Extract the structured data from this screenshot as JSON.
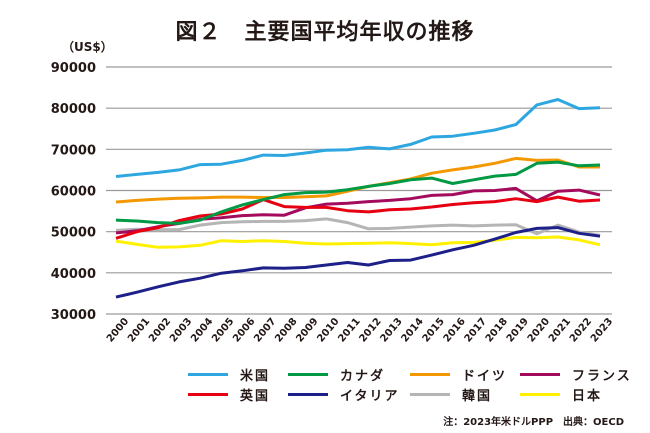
{
  "chart_data": {
    "type": "line",
    "title": "図２　主要国平均年収の推移",
    "ylabel": "（US$）",
    "xlabel": "",
    "ylim": [
      30000,
      90000
    ],
    "yticks": [
      30000,
      40000,
      50000,
      60000,
      70000,
      80000,
      90000
    ],
    "ytick_labels": [
      "30000",
      "40000",
      "50000",
      "60000",
      "70000",
      "80000",
      "90000"
    ],
    "grid": true,
    "legend_position": "bottom",
    "x": [
      "2000",
      "2001",
      "2002",
      "2003",
      "2004",
      "2005",
      "2006",
      "2007",
      "2008",
      "2009",
      "2010",
      "2011",
      "2012",
      "2013",
      "2014",
      "2015",
      "2016",
      "2017",
      "2018",
      "2019",
      "2020",
      "2021",
      "2022",
      "2023"
    ],
    "series": [
      {
        "name": "米国",
        "color": "#2ea7e0",
        "values": [
          63400,
          63900,
          64400,
          65000,
          66300,
          66400,
          67300,
          68600,
          68500,
          69100,
          69800,
          69900,
          70500,
          70100,
          71200,
          73000,
          73200,
          73900,
          74700,
          76000,
          80800,
          82100,
          79900,
          80100
        ]
      },
      {
        "name": "カナダ",
        "color": "#009944",
        "values": [
          52800,
          52600,
          52200,
          52000,
          52800,
          54800,
          56500,
          57800,
          59000,
          59500,
          59600,
          60200,
          61000,
          61700,
          62600,
          63000,
          61700,
          62600,
          63500,
          63900,
          66600,
          66900,
          66000,
          66200
        ]
      },
      {
        "name": "ドイツ",
        "color": "#f39800",
        "values": [
          57200,
          57600,
          57900,
          58100,
          58200,
          58400,
          58400,
          58300,
          58300,
          58500,
          58700,
          59800,
          61000,
          61900,
          62800,
          64200,
          65000,
          65700,
          66600,
          67800,
          67300,
          67400,
          65700,
          65700
        ]
      },
      {
        "name": "フランス",
        "color": "#a40b5d",
        "values": [
          49700,
          50200,
          51200,
          52000,
          53000,
          53400,
          53900,
          54100,
          54000,
          55800,
          56700,
          56900,
          57300,
          57600,
          58000,
          58800,
          59000,
          59900,
          60000,
          60500,
          57500,
          59800,
          60100,
          58900
        ]
      },
      {
        "name": "英国",
        "color": "#e60012",
        "values": [
          48400,
          50000,
          51000,
          52700,
          53800,
          54300,
          55500,
          57800,
          56100,
          55900,
          55900,
          55100,
          54800,
          55300,
          55500,
          56000,
          56600,
          57000,
          57300,
          58000,
          57300,
          58400,
          57400,
          57700
        ]
      },
      {
        "name": "イタリア",
        "color": "#1d2088",
        "values": [
          34100,
          35300,
          36600,
          37800,
          38700,
          39900,
          40500,
          41200,
          41100,
          41300,
          41900,
          42500,
          41900,
          43000,
          43100,
          44300,
          45600,
          46700,
          48200,
          49800,
          50800,
          51000,
          49600,
          48900
        ]
      },
      {
        "name": "韓国",
        "color": "#b5b5b6",
        "values": [
          50300,
          50600,
          50500,
          50500,
          51600,
          52200,
          52400,
          52500,
          52500,
          52700,
          53100,
          52200,
          50700,
          50800,
          51100,
          51400,
          51600,
          51400,
          51600,
          51700,
          49500,
          51600,
          49900,
          49100
        ]
      },
      {
        "name": "日本",
        "color": "#fff100",
        "values": [
          47700,
          46900,
          46200,
          46300,
          46700,
          47800,
          47600,
          47800,
          47600,
          47200,
          47000,
          47100,
          47200,
          47300,
          47100,
          46800,
          47300,
          47400,
          47900,
          48600,
          48500,
          48700,
          48000,
          46800
        ]
      }
    ],
    "legend_order": [
      0,
      1,
      2,
      3,
      4,
      5,
      6,
      7
    ],
    "annotation": "注：2023年米ドルPPP　出典：OECD"
  }
}
